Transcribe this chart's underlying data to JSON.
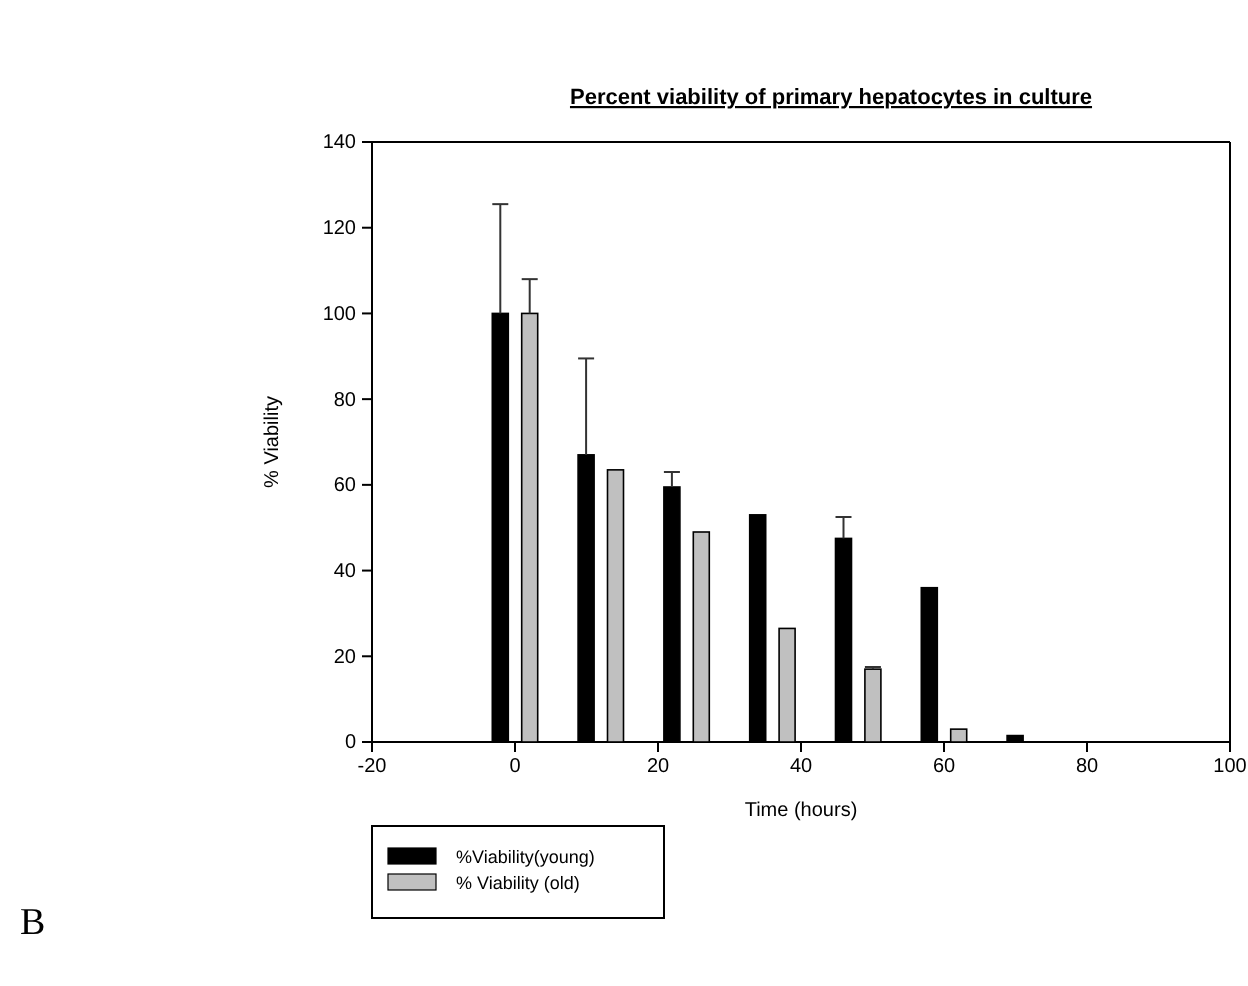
{
  "chart_data": {
    "type": "bar",
    "title": "Percent viability of primary hepatocytes in culture",
    "xlabel": "Time (hours)",
    "ylabel": "% Viability",
    "x": [
      0,
      12,
      24,
      36,
      48,
      60,
      72
    ],
    "series": [
      {
        "name": "%Viability(young)",
        "color": "#000000",
        "values": [
          100,
          67,
          59.5,
          53,
          47.5,
          36,
          1.5
        ],
        "errors": [
          [
            100,
            125.5
          ],
          [
            67,
            89.5
          ],
          [
            59.5,
            63
          ],
          null,
          [
            47.5,
            52.5
          ],
          null,
          null
        ]
      },
      {
        "name": "% Viability (old)",
        "color": "#c0c0c0",
        "values": [
          100,
          63.5,
          49,
          26.5,
          17,
          3,
          null
        ],
        "errors": [
          [
            100,
            108
          ],
          null,
          null,
          null,
          [
            17,
            17.5
          ],
          null,
          null
        ]
      }
    ],
    "xlim": [
      -20,
      100
    ],
    "xticks": [
      -20,
      0,
      20,
      40,
      60,
      80,
      100
    ],
    "ylim": [
      0,
      140
    ],
    "yticks": [
      0,
      20,
      40,
      60,
      80,
      100,
      120,
      140
    ],
    "legend": "bottom left",
    "grid": false,
    "annotations": [
      "B"
    ]
  }
}
